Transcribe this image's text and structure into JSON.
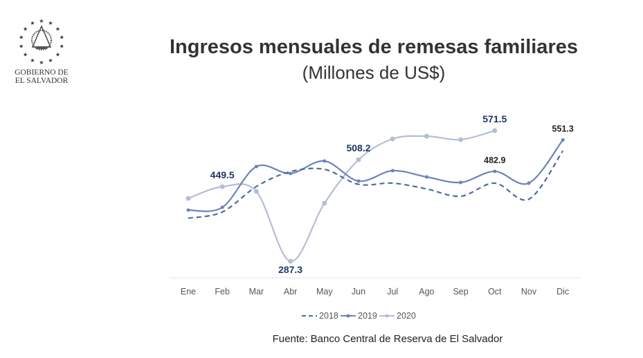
{
  "logo": {
    "line1": "GOBIERNO DE",
    "line2": "EL SALVADOR"
  },
  "chart_data": {
    "type": "line",
    "title": "Ingresos mensuales de remesas familiares",
    "subtitle": "(Millones de US$)",
    "categories": [
      "Ene",
      "Feb",
      "Mar",
      "Abr",
      "May",
      "Jun",
      "Jul",
      "Ago",
      "Sep",
      "Oct",
      "Nov",
      "Dic"
    ],
    "series": [
      {
        "name": "2018",
        "style": "dashed",
        "color": "#4a6aa5",
        "values": [
          381,
          394.5,
          449.8,
          482.3,
          487.3,
          454.7,
          457.3,
          444.7,
          428.7,
          457.3,
          422.2,
          527.5
        ]
      },
      {
        "name": "2019",
        "style": "solid-marker",
        "color": "#6b82b8",
        "values": [
          398.6,
          404.6,
          493.3,
          478.3,
          505.4,
          461.8,
          484.3,
          470.8,
          458.8,
          482.9,
          457.3,
          551.3
        ]
      },
      {
        "name": "2020",
        "style": "solid-marker",
        "color": "#b4bdd8",
        "values": [
          424.2,
          449.5,
          439.2,
          287.3,
          413.6,
          508.2,
          553.5,
          559.5,
          552,
          571.5,
          null,
          null
        ]
      }
    ],
    "data_labels": [
      {
        "series": "2020",
        "category": "Feb",
        "text": "449.5",
        "color": "#1f3564"
      },
      {
        "series": "2020",
        "category": "Abr",
        "text": "287.3",
        "color": "#1f3564"
      },
      {
        "series": "2020",
        "category": "Jun",
        "text": "508.2",
        "color": "#1f3564"
      },
      {
        "series": "2020",
        "category": "Oct",
        "text": "571.5",
        "color": "#1f3564"
      },
      {
        "series": "2019",
        "category": "Oct",
        "text": "482.9",
        "color": "#222222"
      },
      {
        "series": "2019",
        "category": "Dic",
        "text": "551.3",
        "color": "#222222"
      }
    ],
    "legend": "bottom",
    "grid": false,
    "source": "Fuente: Banco Central de Reserva de El Salvador"
  }
}
